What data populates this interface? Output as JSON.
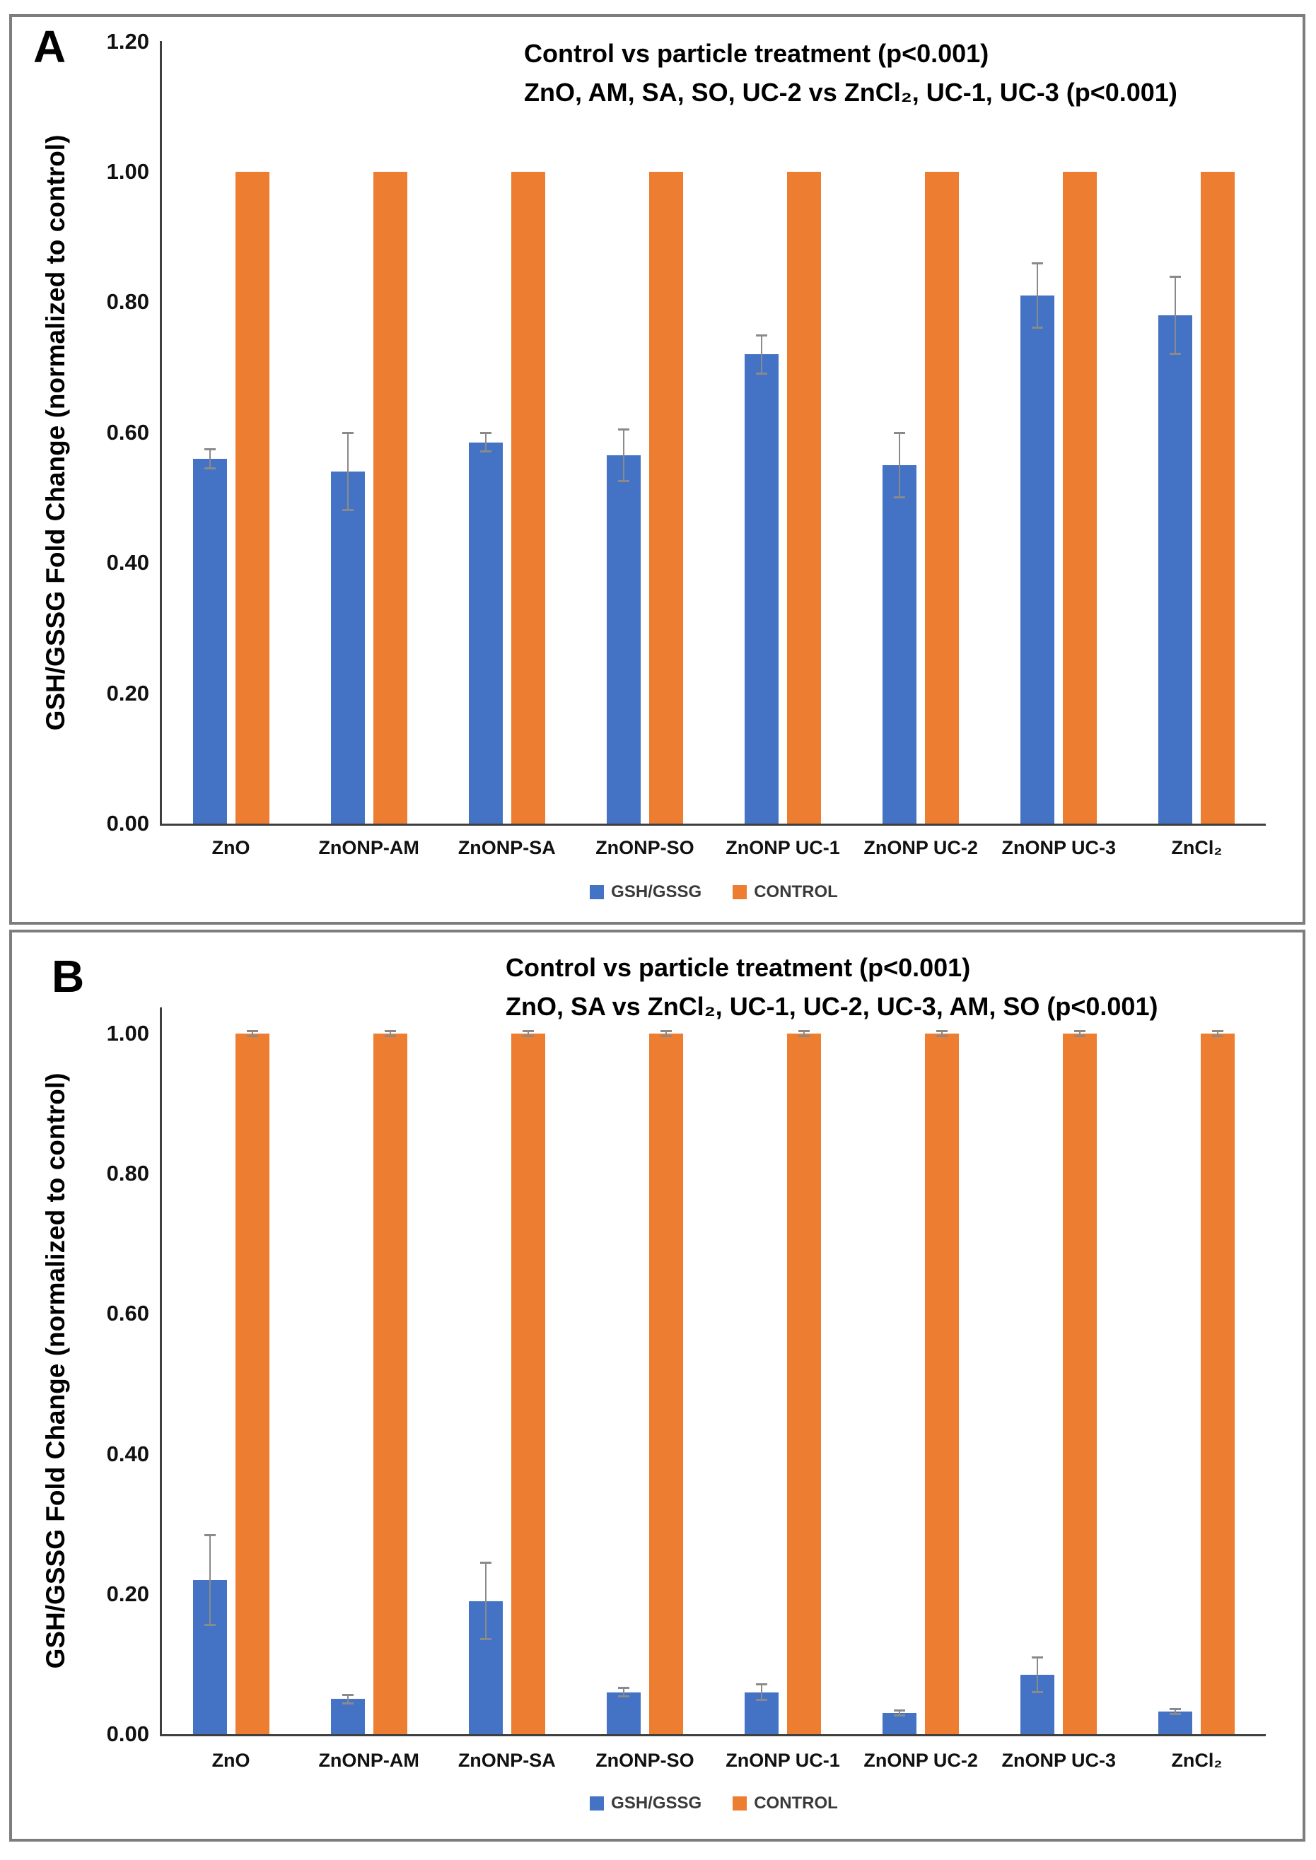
{
  "figure": {
    "y_axis_title": "GSH/GSSG Fold Change (normalized to control)",
    "colors": {
      "treatment": "#4472C4",
      "control": "#ED7D31",
      "error_bar": "#8a8a8a",
      "axis": "#3f3f3f",
      "frame": "#7d7d7d"
    }
  },
  "chart_data": [
    {
      "type": "bar",
      "panel_letter": "A",
      "title_line1": "Control vs particle treatment (p<0.001)",
      "title_line2": "ZnO, AM, SA, SO, UC-2 vs ZnCl₂, UC-1, UC-3 (p<0.001)",
      "categories": [
        "ZnO",
        "ZnONP-AM",
        "ZnONP-SA",
        "ZnONP-SO",
        "ZnONP UC-1",
        "ZnONP UC-2",
        "ZnONP UC-3",
        "ZnCl₂"
      ],
      "series": [
        {
          "name": "GSH/GSSG",
          "color": "#4472C4",
          "values": [
            0.56,
            0.54,
            0.585,
            0.565,
            0.72,
            0.55,
            0.81,
            0.78
          ],
          "errors": [
            0.015,
            0.06,
            0.015,
            0.04,
            0.03,
            0.05,
            0.05,
            0.06
          ]
        },
        {
          "name": "CONTROL",
          "color": "#ED7D31",
          "values": [
            1.0,
            1.0,
            1.0,
            1.0,
            1.0,
            1.0,
            1.0,
            1.0
          ],
          "errors": [
            0,
            0,
            0,
            0,
            0,
            0,
            0,
            0
          ]
        }
      ],
      "ylabel": "GSH/GSSG Fold Change (normalized to control)",
      "yticks": [
        0.0,
        0.2,
        0.4,
        0.6,
        0.8,
        1.0,
        1.2
      ],
      "ylim": [
        0,
        1.2
      ],
      "grid": false,
      "legend_position": "bottom"
    },
    {
      "type": "bar",
      "panel_letter": "B",
      "title_line1": "Control vs particle treatment (p<0.001)",
      "title_line2": "ZnO, SA vs ZnCl₂, UC-1, UC-2, UC-3, AM, SO (p<0.001)",
      "categories": [
        "ZnO",
        "ZnONP-AM",
        "ZnONP-SA",
        "ZnONP-SO",
        "ZnONP UC-1",
        "ZnONP UC-2",
        "ZnONP UC-3",
        "ZnCl₂"
      ],
      "series": [
        {
          "name": "GSH/GSSG",
          "color": "#4472C4",
          "values": [
            0.22,
            0.05,
            0.19,
            0.06,
            0.06,
            0.03,
            0.085,
            0.032
          ],
          "errors": [
            0.065,
            0.007,
            0.055,
            0.007,
            0.012,
            0.004,
            0.025,
            0.004
          ]
        },
        {
          "name": "CONTROL",
          "color": "#ED7D31",
          "values": [
            1.0,
            1.0,
            1.0,
            1.0,
            1.0,
            1.0,
            1.0,
            1.0
          ],
          "errors": [
            0.004,
            0.004,
            0.004,
            0.004,
            0.004,
            0.004,
            0.004,
            0.004
          ]
        }
      ],
      "ylabel": "GSH/GSSG Fold Change (normalized to control)",
      "yticks": [
        0.0,
        0.2,
        0.4,
        0.6,
        0.8,
        1.0
      ],
      "ylim": [
        0,
        1.0
      ],
      "grid": false,
      "legend_position": "bottom"
    }
  ]
}
